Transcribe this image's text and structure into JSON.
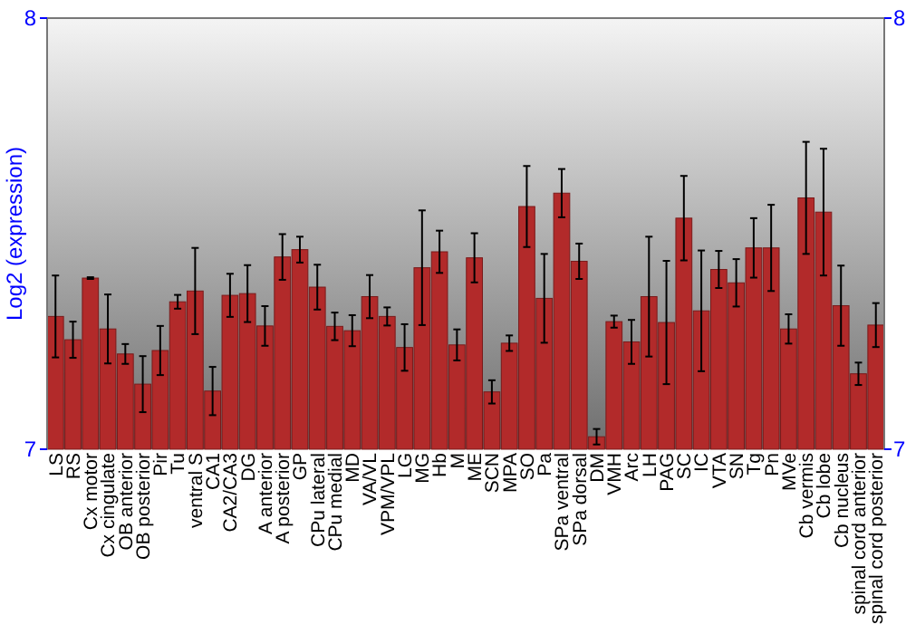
{
  "chart_data": {
    "type": "bar",
    "ylabel": "Log2 (expression)",
    "categories": [
      "LS",
      "RS",
      "Cx motor",
      "Cx cingulate",
      "OB anterior",
      "OB posterior",
      "Pir",
      "Tu",
      "ventral S",
      "CA1",
      "CA2/CA3",
      "DG",
      "A anterior",
      "A posterior",
      "GP",
      "CPu lateral",
      "CPu medial",
      "MD",
      "VA/VL",
      "VPM/VPL",
      "LG",
      "MG",
      "Hb",
      "M",
      "ME",
      "SCN",
      "MPA",
      "SO",
      "Pa",
      "SPa ventral",
      "SPa dorsal",
      "DM",
      "VMH",
      "Arc",
      "LH",
      "PAG",
      "SC",
      "IC",
      "VTA",
      "SN",
      "Tg",
      "Pn",
      "MVe",
      "Cb vermis",
      "Cb lobe",
      "Cb nucleus",
      "spinal cord anterior",
      "spinal cord posterior"
    ],
    "values": [
      7.308,
      7.254,
      7.397,
      7.279,
      7.221,
      7.151,
      7.229,
      7.342,
      7.367,
      7.135,
      7.357,
      7.361,
      7.286,
      7.446,
      7.463,
      7.376,
      7.285,
      7.275,
      7.354,
      7.308,
      7.236,
      7.421,
      7.458,
      7.242,
      7.444,
      7.133,
      7.246,
      7.563,
      7.35,
      7.594,
      7.436,
      7.029,
      7.296,
      7.249,
      7.354,
      7.294,
      7.536,
      7.321,
      7.417,
      7.386,
      7.467,
      7.467,
      7.279,
      7.583,
      7.55,
      7.333,
      7.175,
      7.288
    ],
    "errors": [
      0.095,
      0.042,
      0.002,
      0.08,
      0.023,
      0.065,
      0.057,
      0.016,
      0.1,
      0.056,
      0.05,
      0.066,
      0.046,
      0.053,
      0.03,
      0.052,
      0.032,
      0.036,
      0.05,
      0.021,
      0.054,
      0.133,
      0.049,
      0.036,
      0.057,
      0.027,
      0.018,
      0.094,
      0.103,
      0.056,
      0.041,
      0.018,
      0.014,
      0.051,
      0.139,
      0.143,
      0.098,
      0.14,
      0.043,
      0.055,
      0.069,
      0.1,
      0.034,
      0.13,
      0.147,
      0.093,
      0.026,
      0.051
    ],
    "color": "#b22a2a",
    "ylim": [
      7,
      8
    ],
    "yticks": [
      7,
      8
    ],
    "y2lim": [
      7,
      8
    ],
    "y2ticks": [
      7,
      8
    ],
    "grid": false
  }
}
